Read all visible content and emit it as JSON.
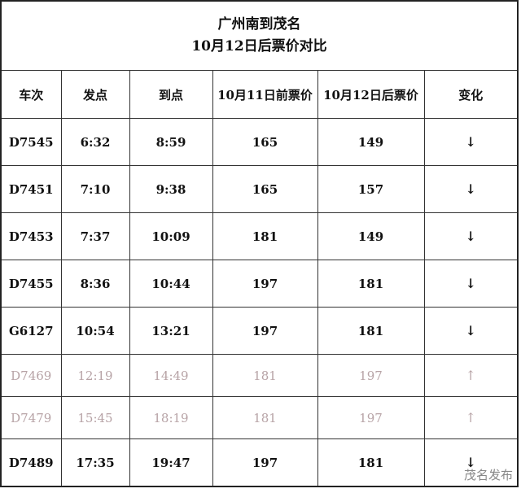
{
  "title_line1": "广州南到茂名",
  "title_line2": "10月12日后票价对比",
  "headers": [
    "车次",
    "发点",
    "到点",
    "10月11日前票价",
    "10月12日后票价",
    "变化"
  ],
  "rows": [
    {
      "train": "D7545",
      "dep": "6:32",
      "arr": "8:59",
      "before": "165",
      "after": "149",
      "change": "↓",
      "dim": false
    },
    {
      "train": "D7451",
      "dep": "7:10",
      "arr": "9:38",
      "before": "165",
      "after": "157",
      "change": "↓",
      "dim": false
    },
    {
      "train": "D7453",
      "dep": "7:37",
      "arr": "10:09",
      "before": "181",
      "after": "149",
      "change": "↓",
      "dim": false
    },
    {
      "train": "D7455",
      "dep": "8:36",
      "arr": "10:44",
      "before": "197",
      "after": "181",
      "change": "↓",
      "dim": false
    },
    {
      "train": "G6127",
      "dep": "10:54",
      "arr": "13:21",
      "before": "197",
      "after": "181",
      "change": "↓",
      "dim": false
    },
    {
      "train": "D7469",
      "dep": "12:19",
      "arr": "14:49",
      "before": "181",
      "after": "197",
      "change": "↑",
      "dim": true
    },
    {
      "train": "D7479",
      "dep": "15:45",
      "arr": "18:19",
      "before": "181",
      "after": "197",
      "change": "↑",
      "dim": true
    },
    {
      "train": "D7489",
      "dep": "17:35",
      "arr": "19:47",
      "before": "197",
      "after": "181",
      "change": "↓",
      "dim": false
    }
  ],
  "watermark": "茂名发布",
  "colors": {
    "dim_text": "#b7a3a6",
    "text": "#111111"
  }
}
